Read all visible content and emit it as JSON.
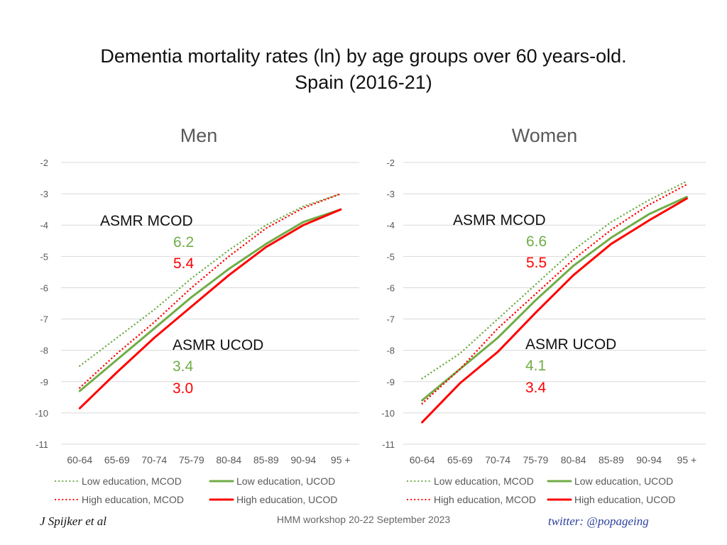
{
  "title_line1": "Dementia mortality rates (ln) by age groups over 60 years-old.",
  "title_line2": "Spain (2016-21)",
  "footer": {
    "author": "J Spijker et al",
    "event": "HMM workshop 20-22 September 2023",
    "twitter": "twitter: @popageing"
  },
  "colors": {
    "low": "#70ad47",
    "high": "#ff0000",
    "grid": "#d9d9d9",
    "axis_text": "#595959"
  },
  "chart_data": [
    {
      "type": "line",
      "title": "Men",
      "categories": [
        "60-64",
        "65-69",
        "70-74",
        "75-79",
        "80-84",
        "85-89",
        "90-94",
        "95 +"
      ],
      "ylim": [
        -11,
        -2
      ],
      "yticks": [
        -2,
        -3,
        -4,
        -5,
        -6,
        -7,
        -8,
        -9,
        -10,
        -11
      ],
      "series": [
        {
          "name": "Low education, MCOD",
          "style": "dotted",
          "color": "low",
          "values": [
            -8.5,
            -7.6,
            -6.7,
            -5.7,
            -4.8,
            -4.0,
            -3.4,
            -3.0
          ]
        },
        {
          "name": "Low education, UCOD",
          "style": "solid",
          "color": "low",
          "values": [
            -9.3,
            -8.3,
            -7.3,
            -6.3,
            -5.4,
            -4.6,
            -3.9,
            -3.5
          ]
        },
        {
          "name": "High education, MCOD",
          "style": "dotted",
          "color": "high",
          "values": [
            -9.2,
            -8.1,
            -7.1,
            -6.0,
            -5.0,
            -4.1,
            -3.45,
            -3.0
          ]
        },
        {
          "name": "High education, UCOD",
          "style": "solid",
          "color": "high",
          "values": [
            -9.85,
            -8.7,
            -7.6,
            -6.6,
            -5.6,
            -4.7,
            -4.0,
            -3.5
          ]
        }
      ],
      "annotations": {
        "mcod_label": "ASMR MCOD",
        "mcod_low": "6.2",
        "mcod_high": "5.4",
        "ucod_label": "ASMR UCOD",
        "ucod_low": "3.4",
        "ucod_high": "3.0"
      }
    },
    {
      "type": "line",
      "title": "Women",
      "categories": [
        "60-64",
        "65-69",
        "70-74",
        "75-79",
        "80-84",
        "85-89",
        "90-94",
        "95 +"
      ],
      "ylim": [
        -11,
        -2
      ],
      "yticks": [
        -2,
        -3,
        -4,
        -5,
        -6,
        -7,
        -8,
        -9,
        -10,
        -11
      ],
      "series": [
        {
          "name": "Low education, MCOD",
          "style": "dotted",
          "color": "low",
          "values": [
            -8.9,
            -8.1,
            -7.0,
            -5.9,
            -4.8,
            -3.9,
            -3.2,
            -2.6
          ]
        },
        {
          "name": "Low education, UCOD",
          "style": "solid",
          "color": "low",
          "values": [
            -9.6,
            -8.6,
            -7.6,
            -6.4,
            -5.3,
            -4.4,
            -3.65,
            -3.1
          ]
        },
        {
          "name": "High education, MCOD",
          "style": "dotted",
          "color": "high",
          "values": [
            -9.7,
            -8.6,
            -7.3,
            -6.2,
            -5.1,
            -4.15,
            -3.35,
            -2.7
          ]
        },
        {
          "name": "High education, UCOD",
          "style": "solid",
          "color": "high",
          "values": [
            -10.3,
            -9.05,
            -8.05,
            -6.8,
            -5.6,
            -4.6,
            -3.85,
            -3.15
          ]
        }
      ],
      "annotations": {
        "mcod_label": "ASMR MCOD",
        "mcod_low": "6.6",
        "mcod_high": "5.5",
        "ucod_label": "ASMR UCOD",
        "ucod_low": "4.1",
        "ucod_high": "3.4"
      }
    }
  ]
}
